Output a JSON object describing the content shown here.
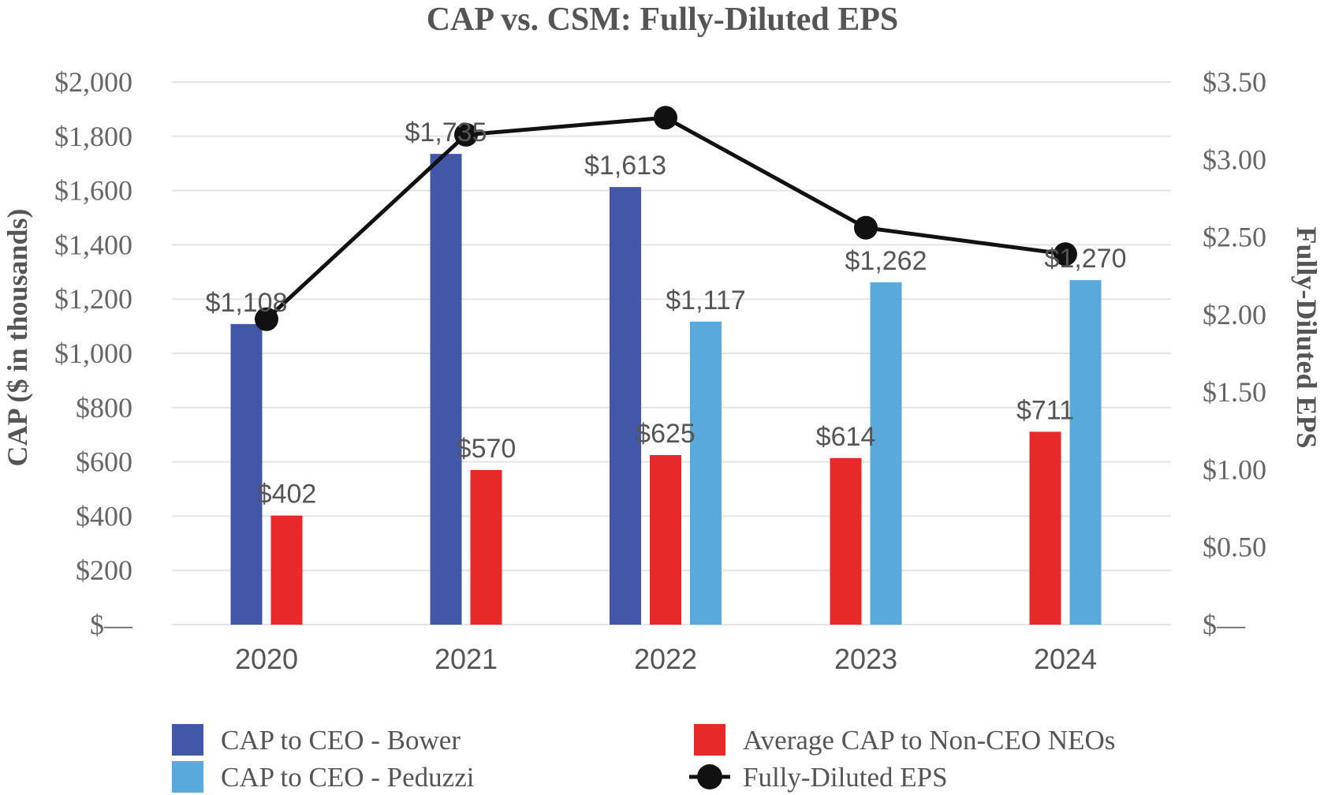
{
  "chart_data": {
    "type": "bar",
    "title": "CAP vs. CSM: Fully-Diluted EPS",
    "ylabel": "CAP ($ in thousands)",
    "y2label": "Fully-Diluted EPS",
    "categories": [
      "2020",
      "2021",
      "2022",
      "2023",
      "2024"
    ],
    "ylim": [
      0,
      2000
    ],
    "y2lim": [
      0,
      3.5
    ],
    "yticks": [
      {
        "value": 0,
        "label": "$—"
      },
      {
        "value": 200,
        "label": "$200"
      },
      {
        "value": 400,
        "label": "$400"
      },
      {
        "value": 600,
        "label": "$600"
      },
      {
        "value": 800,
        "label": "$800"
      },
      {
        "value": 1000,
        "label": "$1,000"
      },
      {
        "value": 1200,
        "label": "$1,200"
      },
      {
        "value": 1400,
        "label": "$1,400"
      },
      {
        "value": 1600,
        "label": "$1,600"
      },
      {
        "value": 1800,
        "label": "$1,800"
      },
      {
        "value": 2000,
        "label": "$2,000"
      }
    ],
    "y2ticks": [
      {
        "value": 0,
        "label": "$—"
      },
      {
        "value": 0.5,
        "label": "$0.50"
      },
      {
        "value": 1.0,
        "label": "$1.00"
      },
      {
        "value": 1.5,
        "label": "$1.50"
      },
      {
        "value": 2.0,
        "label": "$2.00"
      },
      {
        "value": 2.5,
        "label": "$2.50"
      },
      {
        "value": 3.0,
        "label": "$3.00"
      },
      {
        "value": 3.5,
        "label": "$3.50"
      }
    ],
    "bar_series": [
      {
        "name": "CAP to CEO - Bower",
        "color": "#4257a8",
        "values": [
          1108,
          1735,
          1613,
          null,
          null
        ],
        "labels": [
          "$1,108",
          "$1,735",
          "$1,613",
          null,
          null
        ]
      },
      {
        "name": "Average CAP to Non-CEO NEOs",
        "color": "#e8292a",
        "values": [
          402,
          570,
          625,
          614,
          711
        ],
        "labels": [
          "$402",
          "$570",
          "$625",
          "$614",
          "$711"
        ]
      },
      {
        "name": "CAP to CEO - Peduzzi",
        "color": "#5aa9dc",
        "values": [
          null,
          null,
          1117,
          1262,
          1270
        ],
        "labels": [
          null,
          null,
          "$1,117",
          "$1,262",
          "$1,270"
        ]
      }
    ],
    "line_series": {
      "name": "Fully-Diluted EPS",
      "color": "#111111",
      "axis": "right",
      "values": [
        1.97,
        3.16,
        3.27,
        2.56,
        2.39
      ]
    },
    "legend": [
      {
        "name": "CAP to CEO - Bower",
        "kind": "bar",
        "color": "#4257a8"
      },
      {
        "name": "Average CAP to Non-CEO NEOs",
        "kind": "bar",
        "color": "#e8292a"
      },
      {
        "name": "CAP to CEO - Peduzzi",
        "kind": "bar",
        "color": "#5aa9dc"
      },
      {
        "name": "Fully-Diluted EPS",
        "kind": "line",
        "color": "#111111"
      }
    ],
    "legend_position": "bottom",
    "grid": true
  }
}
